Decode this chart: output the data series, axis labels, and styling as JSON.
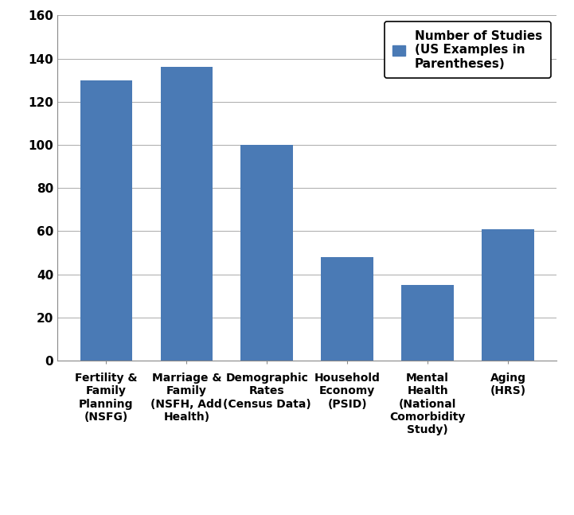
{
  "categories": [
    "Fertility &\nFamily\nPlanning\n(NSFG)",
    "Marriage &\nFamily\n(NSFH, Add\nHealth)",
    "Demographic\nRates\n(Census Data)",
    "Household\nEconomy\n(PSID)",
    "Mental\nHealth\n(National\nComorbidity\nStudy)",
    "Aging\n(HRS)"
  ],
  "values": [
    130,
    136,
    100,
    48,
    35,
    61
  ],
  "bar_color": "#4a7ab5",
  "ylim": [
    0,
    160
  ],
  "yticks": [
    0,
    20,
    40,
    60,
    80,
    100,
    120,
    140,
    160
  ],
  "legend_label": "Number of Studies\n(US Examples in\nParentheses)",
  "background_color": "#ffffff",
  "grid_color": "#aaaaaa",
  "bar_width": 0.65
}
